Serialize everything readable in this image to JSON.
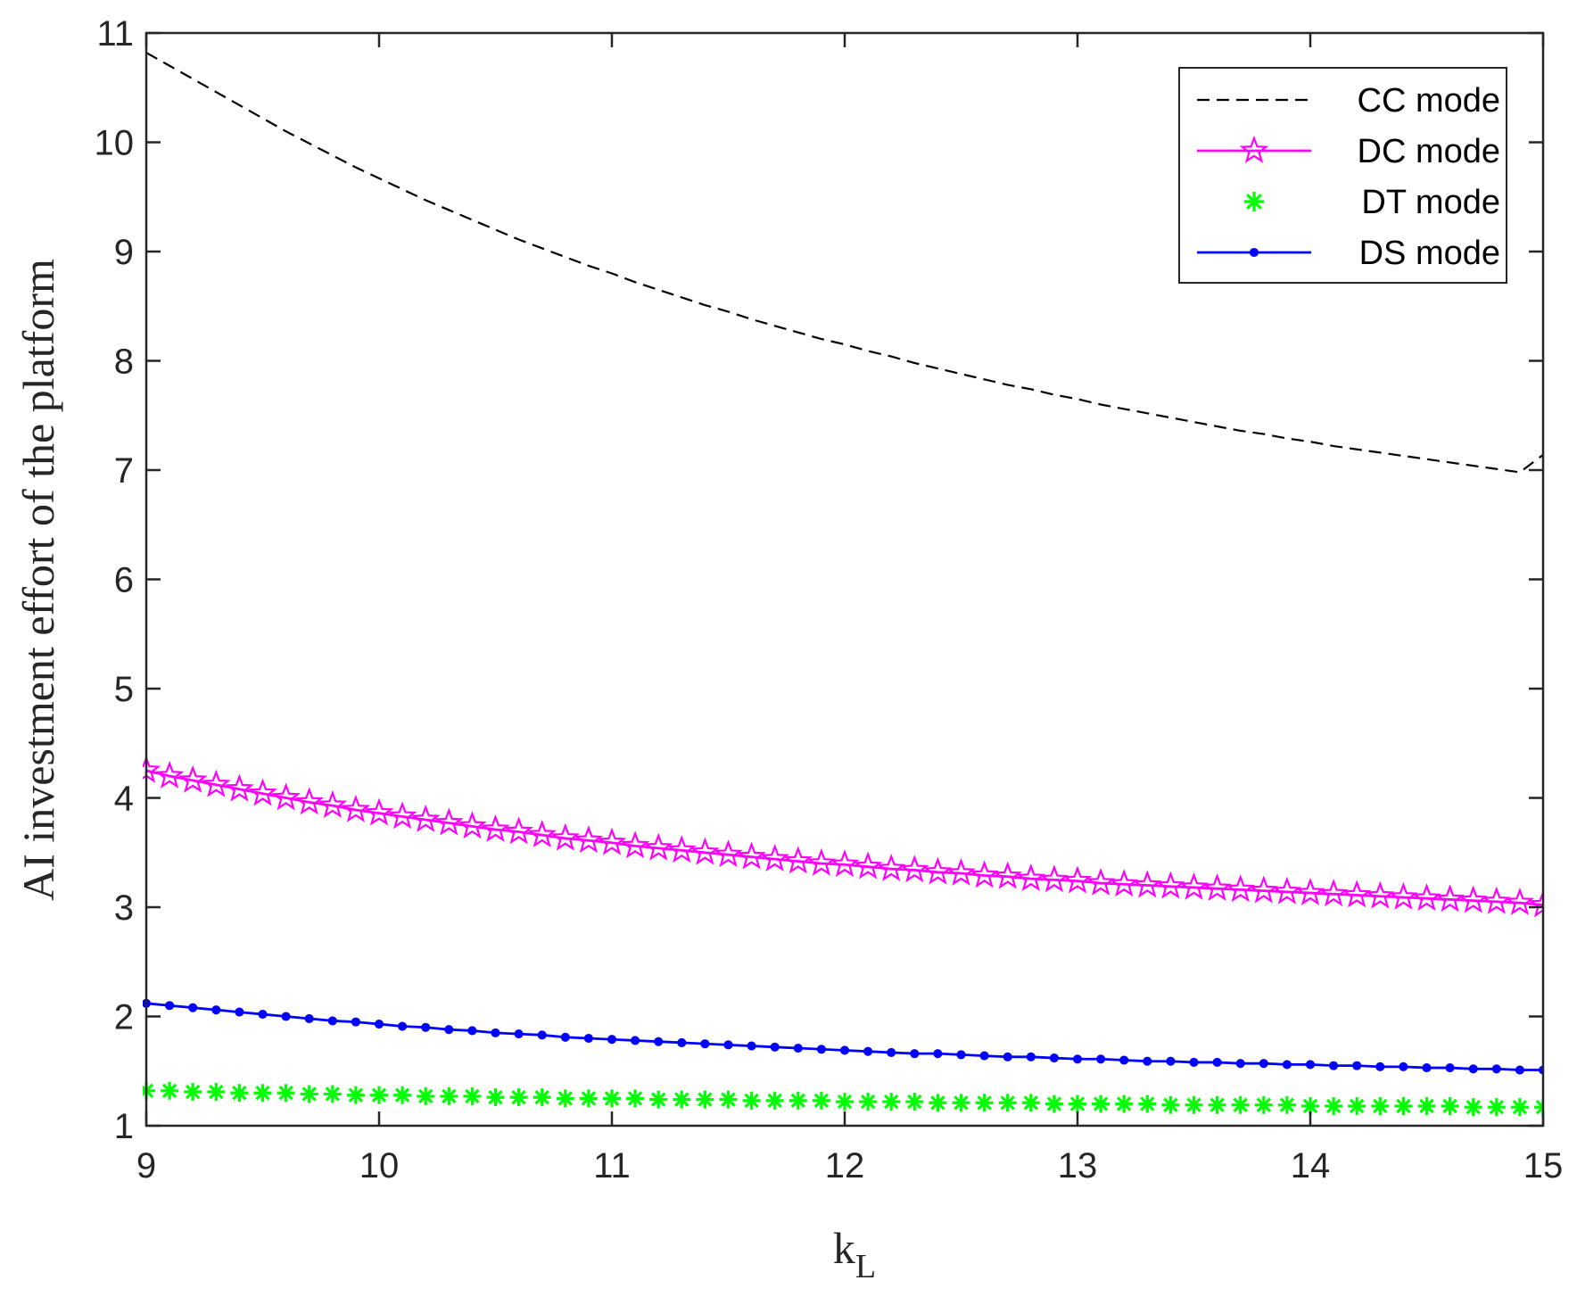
{
  "chart_data": {
    "type": "line",
    "xlabel": {
      "main": "k",
      "sub": "L"
    },
    "ylabel": "AI investment effort of the platform",
    "xlim": [
      9,
      15
    ],
    "ylim": [
      1,
      11
    ],
    "xticks": [
      9,
      10,
      11,
      12,
      13,
      14,
      15
    ],
    "yticks": [
      1,
      2,
      3,
      4,
      5,
      6,
      7,
      8,
      9,
      10,
      11
    ],
    "grid": false,
    "legend_position": "top-right",
    "x_start": 9,
    "x_step": 0.1,
    "series": [
      {
        "name": "CC mode",
        "color": "#000000",
        "line_style": "dashed",
        "marker": "none",
        "x_end": 15,
        "values": [
          10.82,
          10.7,
          10.58,
          10.46,
          10.34,
          10.22,
          10.1,
          9.99,
          9.88,
          9.77,
          9.67,
          9.57,
          9.47,
          9.38,
          9.29,
          9.2,
          9.11,
          9.03,
          8.95,
          8.87,
          8.8,
          8.72,
          8.65,
          8.58,
          8.51,
          8.45,
          8.38,
          8.32,
          8.26,
          8.2,
          8.15,
          8.09,
          8.04,
          7.98,
          7.93,
          7.88,
          7.83,
          7.78,
          7.74,
          7.69,
          7.65,
          7.6,
          7.56,
          7.52,
          7.48,
          7.44,
          7.4,
          7.36,
          7.33,
          7.29,
          7.26,
          7.22,
          7.19,
          7.16,
          7.13,
          7.1,
          7.07,
          7.04,
          7.01,
          6.98,
          7.14
        ]
      },
      {
        "name": "DC mode",
        "color": "#ff00ff",
        "line_style": "solid",
        "marker": "star",
        "values": [
          4.25,
          4.2,
          4.16,
          4.12,
          4.08,
          4.04,
          4.0,
          3.96,
          3.93,
          3.89,
          3.86,
          3.83,
          3.8,
          3.77,
          3.74,
          3.71,
          3.69,
          3.66,
          3.63,
          3.61,
          3.59,
          3.56,
          3.54,
          3.52,
          3.5,
          3.48,
          3.46,
          3.44,
          3.42,
          3.4,
          3.39,
          3.37,
          3.35,
          3.34,
          3.32,
          3.31,
          3.29,
          3.28,
          3.26,
          3.25,
          3.24,
          3.22,
          3.21,
          3.2,
          3.19,
          3.18,
          3.17,
          3.16,
          3.15,
          3.14,
          3.13,
          3.12,
          3.11,
          3.1,
          3.09,
          3.08,
          3.07,
          3.06,
          3.05,
          3.04,
          3.02
        ]
      },
      {
        "name": "DT mode",
        "color": "#00ff00",
        "line_style": "none",
        "marker": "asterisk",
        "values": [
          1.32,
          1.32,
          1.31,
          1.31,
          1.3,
          1.3,
          1.3,
          1.29,
          1.29,
          1.28,
          1.28,
          1.28,
          1.27,
          1.27,
          1.27,
          1.26,
          1.26,
          1.26,
          1.25,
          1.25,
          1.25,
          1.25,
          1.24,
          1.24,
          1.24,
          1.24,
          1.23,
          1.23,
          1.23,
          1.23,
          1.22,
          1.22,
          1.22,
          1.22,
          1.21,
          1.21,
          1.21,
          1.21,
          1.21,
          1.2,
          1.2,
          1.2,
          1.2,
          1.2,
          1.19,
          1.19,
          1.19,
          1.19,
          1.19,
          1.19,
          1.18,
          1.18,
          1.18,
          1.18,
          1.18,
          1.18,
          1.18,
          1.17,
          1.17,
          1.17,
          1.17
        ]
      },
      {
        "name": "DS mode",
        "color": "#0000ff",
        "line_style": "solid",
        "marker": "point",
        "values": [
          2.12,
          2.1,
          2.08,
          2.06,
          2.04,
          2.02,
          2.0,
          1.98,
          1.96,
          1.95,
          1.93,
          1.91,
          1.9,
          1.88,
          1.87,
          1.85,
          1.84,
          1.83,
          1.81,
          1.8,
          1.79,
          1.78,
          1.77,
          1.76,
          1.75,
          1.74,
          1.73,
          1.72,
          1.71,
          1.7,
          1.69,
          1.68,
          1.67,
          1.66,
          1.66,
          1.65,
          1.64,
          1.63,
          1.63,
          1.62,
          1.61,
          1.61,
          1.6,
          1.59,
          1.59,
          1.58,
          1.58,
          1.57,
          1.57,
          1.56,
          1.56,
          1.55,
          1.55,
          1.54,
          1.54,
          1.53,
          1.53,
          1.52,
          1.52,
          1.51,
          1.51
        ]
      }
    ]
  }
}
